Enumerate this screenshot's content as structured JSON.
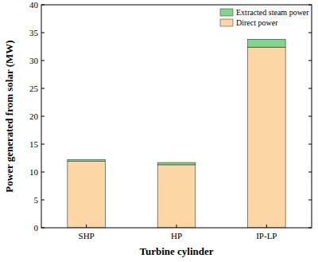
{
  "chart_data": {
    "type": "bar",
    "stacked": true,
    "x_label": "Turbine cylinder",
    "y_label": "Power generated from solar (MW)",
    "categories": [
      "SHP",
      "HP",
      "IP-LP"
    ],
    "series": [
      {
        "name": "Direct power",
        "color": "#fcd6a4",
        "values": [
          11.9,
          11.3,
          32.4
        ]
      },
      {
        "name": "Extracted steam power",
        "color": "#80d68c",
        "values": [
          0.35,
          0.4,
          1.4
        ]
      }
    ],
    "ylim": [
      0,
      40
    ],
    "yticks": [
      0,
      5,
      10,
      15,
      20,
      25,
      30,
      35,
      40
    ],
    "legend": "top-right",
    "grid": false
  }
}
